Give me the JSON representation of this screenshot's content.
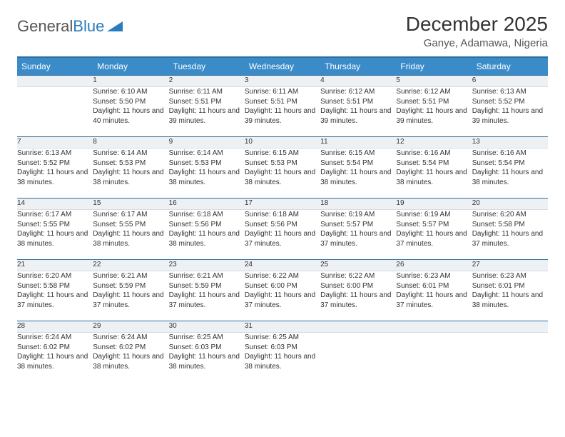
{
  "brand": {
    "part1": "General",
    "part2": "Blue"
  },
  "colors": {
    "header_bg": "#3b8bc9",
    "header_border": "#2b6fa3",
    "daynum_bg": "#eef1f4",
    "text": "#333333"
  },
  "title": "December 2025",
  "location": "Ganye, Adamawa, Nigeria",
  "weekdays": [
    "Sunday",
    "Monday",
    "Tuesday",
    "Wednesday",
    "Thursday",
    "Friday",
    "Saturday"
  ],
  "weeks": [
    {
      "nums": [
        "",
        "1",
        "2",
        "3",
        "4",
        "5",
        "6"
      ],
      "cells": [
        null,
        {
          "sunrise": "Sunrise: 6:10 AM",
          "sunset": "Sunset: 5:50 PM",
          "daylight": "Daylight: 11 hours and 40 minutes."
        },
        {
          "sunrise": "Sunrise: 6:11 AM",
          "sunset": "Sunset: 5:51 PM",
          "daylight": "Daylight: 11 hours and 39 minutes."
        },
        {
          "sunrise": "Sunrise: 6:11 AM",
          "sunset": "Sunset: 5:51 PM",
          "daylight": "Daylight: 11 hours and 39 minutes."
        },
        {
          "sunrise": "Sunrise: 6:12 AM",
          "sunset": "Sunset: 5:51 PM",
          "daylight": "Daylight: 11 hours and 39 minutes."
        },
        {
          "sunrise": "Sunrise: 6:12 AM",
          "sunset": "Sunset: 5:51 PM",
          "daylight": "Daylight: 11 hours and 39 minutes."
        },
        {
          "sunrise": "Sunrise: 6:13 AM",
          "sunset": "Sunset: 5:52 PM",
          "daylight": "Daylight: 11 hours and 39 minutes."
        }
      ]
    },
    {
      "nums": [
        "7",
        "8",
        "9",
        "10",
        "11",
        "12",
        "13"
      ],
      "cells": [
        {
          "sunrise": "Sunrise: 6:13 AM",
          "sunset": "Sunset: 5:52 PM",
          "daylight": "Daylight: 11 hours and 38 minutes."
        },
        {
          "sunrise": "Sunrise: 6:14 AM",
          "sunset": "Sunset: 5:53 PM",
          "daylight": "Daylight: 11 hours and 38 minutes."
        },
        {
          "sunrise": "Sunrise: 6:14 AM",
          "sunset": "Sunset: 5:53 PM",
          "daylight": "Daylight: 11 hours and 38 minutes."
        },
        {
          "sunrise": "Sunrise: 6:15 AM",
          "sunset": "Sunset: 5:53 PM",
          "daylight": "Daylight: 11 hours and 38 minutes."
        },
        {
          "sunrise": "Sunrise: 6:15 AM",
          "sunset": "Sunset: 5:54 PM",
          "daylight": "Daylight: 11 hours and 38 minutes."
        },
        {
          "sunrise": "Sunrise: 6:16 AM",
          "sunset": "Sunset: 5:54 PM",
          "daylight": "Daylight: 11 hours and 38 minutes."
        },
        {
          "sunrise": "Sunrise: 6:16 AM",
          "sunset": "Sunset: 5:54 PM",
          "daylight": "Daylight: 11 hours and 38 minutes."
        }
      ]
    },
    {
      "nums": [
        "14",
        "15",
        "16",
        "17",
        "18",
        "19",
        "20"
      ],
      "cells": [
        {
          "sunrise": "Sunrise: 6:17 AM",
          "sunset": "Sunset: 5:55 PM",
          "daylight": "Daylight: 11 hours and 38 minutes."
        },
        {
          "sunrise": "Sunrise: 6:17 AM",
          "sunset": "Sunset: 5:55 PM",
          "daylight": "Daylight: 11 hours and 38 minutes."
        },
        {
          "sunrise": "Sunrise: 6:18 AM",
          "sunset": "Sunset: 5:56 PM",
          "daylight": "Daylight: 11 hours and 38 minutes."
        },
        {
          "sunrise": "Sunrise: 6:18 AM",
          "sunset": "Sunset: 5:56 PM",
          "daylight": "Daylight: 11 hours and 37 minutes."
        },
        {
          "sunrise": "Sunrise: 6:19 AM",
          "sunset": "Sunset: 5:57 PM",
          "daylight": "Daylight: 11 hours and 37 minutes."
        },
        {
          "sunrise": "Sunrise: 6:19 AM",
          "sunset": "Sunset: 5:57 PM",
          "daylight": "Daylight: 11 hours and 37 minutes."
        },
        {
          "sunrise": "Sunrise: 6:20 AM",
          "sunset": "Sunset: 5:58 PM",
          "daylight": "Daylight: 11 hours and 37 minutes."
        }
      ]
    },
    {
      "nums": [
        "21",
        "22",
        "23",
        "24",
        "25",
        "26",
        "27"
      ],
      "cells": [
        {
          "sunrise": "Sunrise: 6:20 AM",
          "sunset": "Sunset: 5:58 PM",
          "daylight": "Daylight: 11 hours and 37 minutes."
        },
        {
          "sunrise": "Sunrise: 6:21 AM",
          "sunset": "Sunset: 5:59 PM",
          "daylight": "Daylight: 11 hours and 37 minutes."
        },
        {
          "sunrise": "Sunrise: 6:21 AM",
          "sunset": "Sunset: 5:59 PM",
          "daylight": "Daylight: 11 hours and 37 minutes."
        },
        {
          "sunrise": "Sunrise: 6:22 AM",
          "sunset": "Sunset: 6:00 PM",
          "daylight": "Daylight: 11 hours and 37 minutes."
        },
        {
          "sunrise": "Sunrise: 6:22 AM",
          "sunset": "Sunset: 6:00 PM",
          "daylight": "Daylight: 11 hours and 37 minutes."
        },
        {
          "sunrise": "Sunrise: 6:23 AM",
          "sunset": "Sunset: 6:01 PM",
          "daylight": "Daylight: 11 hours and 37 minutes."
        },
        {
          "sunrise": "Sunrise: 6:23 AM",
          "sunset": "Sunset: 6:01 PM",
          "daylight": "Daylight: 11 hours and 38 minutes."
        }
      ]
    },
    {
      "nums": [
        "28",
        "29",
        "30",
        "31",
        "",
        "",
        ""
      ],
      "cells": [
        {
          "sunrise": "Sunrise: 6:24 AM",
          "sunset": "Sunset: 6:02 PM",
          "daylight": "Daylight: 11 hours and 38 minutes."
        },
        {
          "sunrise": "Sunrise: 6:24 AM",
          "sunset": "Sunset: 6:02 PM",
          "daylight": "Daylight: 11 hours and 38 minutes."
        },
        {
          "sunrise": "Sunrise: 6:25 AM",
          "sunset": "Sunset: 6:03 PM",
          "daylight": "Daylight: 11 hours and 38 minutes."
        },
        {
          "sunrise": "Sunrise: 6:25 AM",
          "sunset": "Sunset: 6:03 PM",
          "daylight": "Daylight: 11 hours and 38 minutes."
        },
        null,
        null,
        null
      ]
    }
  ]
}
